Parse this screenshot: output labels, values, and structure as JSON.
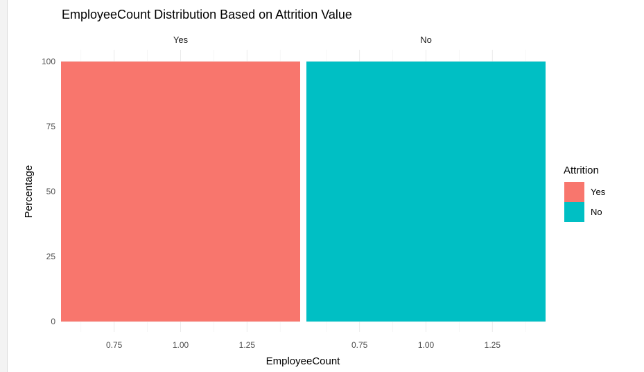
{
  "chart_data": {
    "type": "bar",
    "title": "EmployeeCount Distribution Based on Attrition Value",
    "xlabel": "EmployeeCount",
    "ylabel": "Percentage",
    "ylim": [
      0,
      100
    ],
    "y_ticks": [
      "0",
      "25",
      "50",
      "75",
      "100"
    ],
    "y_tick_values": [
      0,
      25,
      50,
      75,
      100
    ],
    "x_ticks": [
      "0.75",
      "1.00",
      "1.25"
    ],
    "x_tick_values": [
      0.75,
      1.0,
      1.25
    ],
    "xlim": [
      0.55,
      1.45
    ],
    "bar_x": 1,
    "bar_width": 0.9,
    "grid": true,
    "facets": [
      {
        "label": "Yes",
        "value": 100,
        "color": "#F8766D"
      },
      {
        "label": "No",
        "value": 100,
        "color": "#00BFC4"
      }
    ],
    "legend": {
      "title": "Attrition",
      "position": "right",
      "items": [
        {
          "label": "Yes",
          "color": "#F8766D"
        },
        {
          "label": "No",
          "color": "#00BFC4"
        }
      ]
    }
  }
}
